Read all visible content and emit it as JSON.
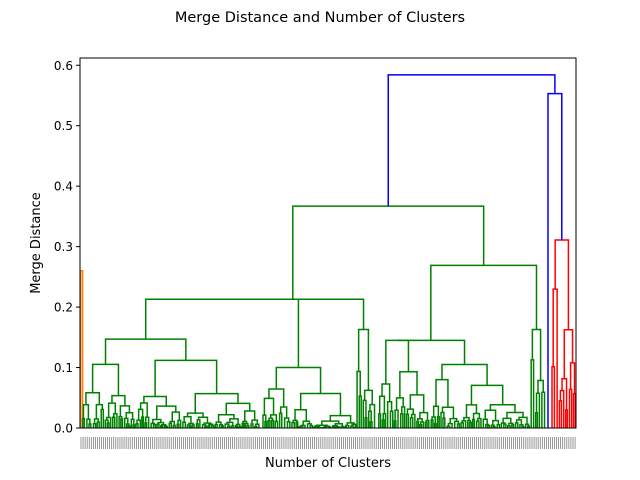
{
  "chart_data": {
    "type": "dendrogram",
    "title": "Merge Distance and Number of Clusters",
    "xlabel": "Number of Clusters",
    "ylabel": "Merge Distance",
    "ylim": [
      0,
      0.612
    ],
    "yticks": [
      0.0,
      0.1,
      0.2,
      0.3,
      0.4,
      0.5,
      0.6
    ],
    "ytick_labels": [
      "0.0",
      "0.1",
      "0.2",
      "0.3",
      "0.4",
      "0.5",
      "0.6"
    ],
    "x_tick_labels_legible": false,
    "grid": false,
    "colors": {
      "top_links": "#0000ff",
      "orange_cluster": "#ff7f0e",
      "green_cluster": "#008000",
      "red_cluster": "#ff0000"
    },
    "major_merges": [
      {
        "cluster": "top",
        "color": "#0000ff",
        "height": 0.584
      },
      {
        "cluster": "top",
        "color": "#0000ff",
        "height": 0.553
      },
      {
        "cluster": "green",
        "color": "#008000",
        "height": 0.367
      },
      {
        "cluster": "red",
        "color": "#ff0000",
        "height": 0.311
      },
      {
        "cluster": "green",
        "color": "#008000",
        "height": 0.269
      },
      {
        "cluster": "orange",
        "color": "#ff7f0e",
        "height": 0.26
      },
      {
        "cluster": "green",
        "color": "#008000",
        "height": 0.213
      },
      {
        "cluster": "green",
        "color": "#008000",
        "height": 0.163
      },
      {
        "cluster": "green",
        "color": "#008000",
        "height": 0.147
      },
      {
        "cluster": "green",
        "color": "#008000",
        "height": 0.145
      }
    ]
  }
}
